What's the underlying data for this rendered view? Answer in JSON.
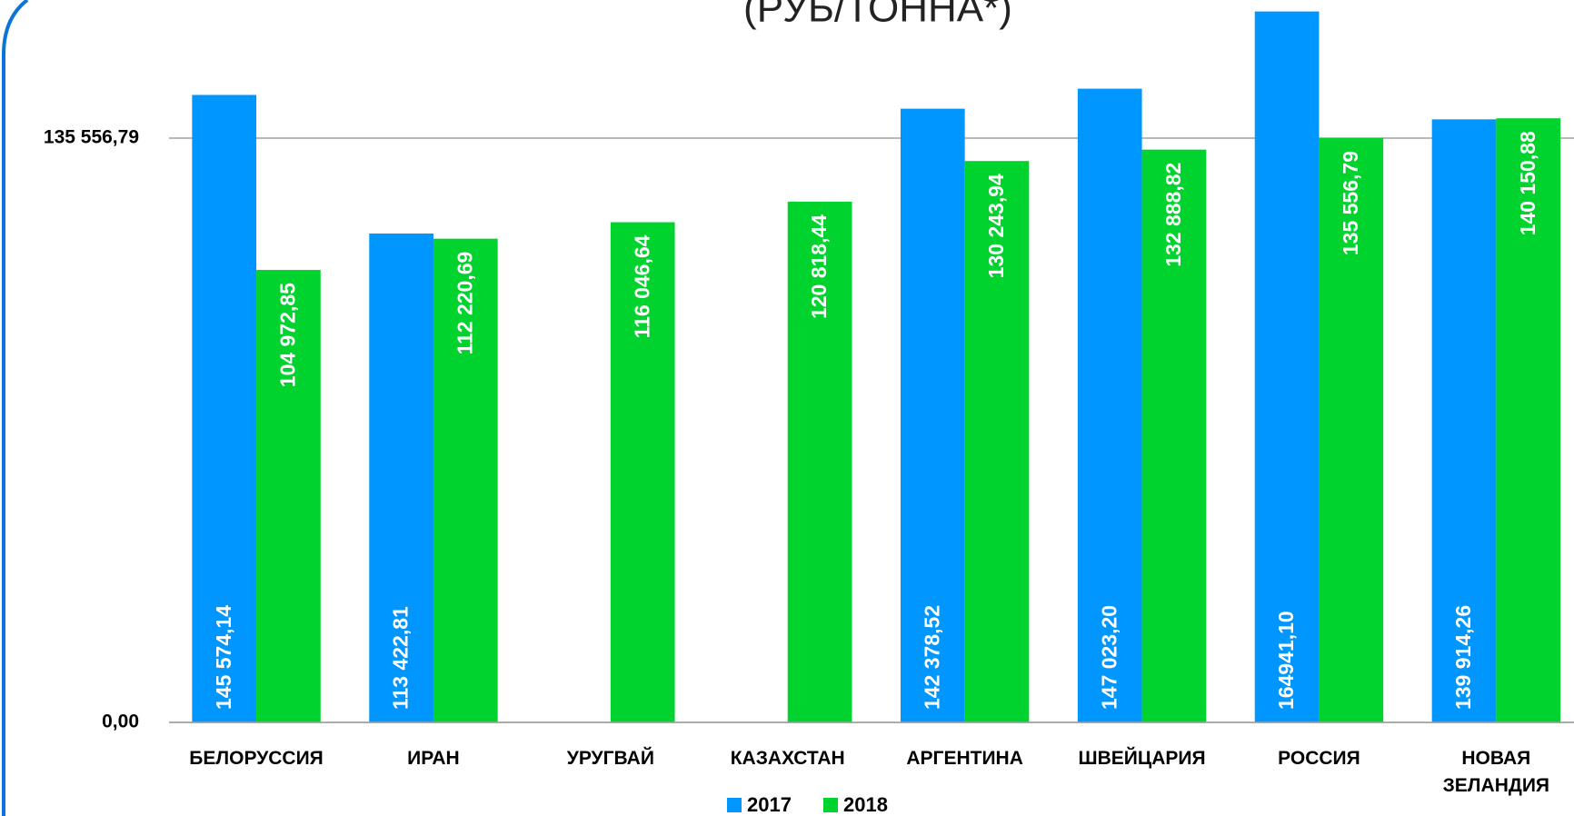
{
  "chart_data": {
    "type": "bar",
    "title": "(РУБ/ТОННА*)",
    "categories": [
      "БЕЛОРУССИЯ",
      "ИРАН",
      "УРУГВАЙ",
      "КАЗАХСТАН",
      "АРГЕНТИНА",
      "ШВЕЙЦАРИЯ",
      "РОССИЯ",
      "НОВАЯ ЗЕЛАНДИЯ"
    ],
    "series": [
      {
        "name": "2017",
        "color": "#0096ff",
        "values": [
          145574.14,
          113422.81,
          null,
          null,
          142378.52,
          147023.2,
          164941.1,
          139914.26
        ],
        "value_labels": [
          "145 574,14",
          "113 422,81",
          null,
          null,
          "142 378,52",
          "147 023,20",
          "164941,10",
          "139 914,26"
        ]
      },
      {
        "name": "2018",
        "color": "#00d22e",
        "values": [
          104972.85,
          112220.69,
          116046.64,
          120818.44,
          130243.94,
          132888.82,
          135556.79,
          140150.88
        ],
        "value_labels": [
          "104 972,85",
          "112 220,69",
          "116 046,64",
          "120 818,44",
          "130 243,94",
          "132 888,82",
          "135 556,79",
          "140 150,88"
        ]
      }
    ],
    "ylim": [
      0,
      167600
    ],
    "yticks": [
      {
        "value": 0,
        "label": "0,00"
      },
      {
        "value": 135556.79,
        "label": "135 556,79"
      }
    ],
    "grid": true,
    "legend": "bottom"
  }
}
